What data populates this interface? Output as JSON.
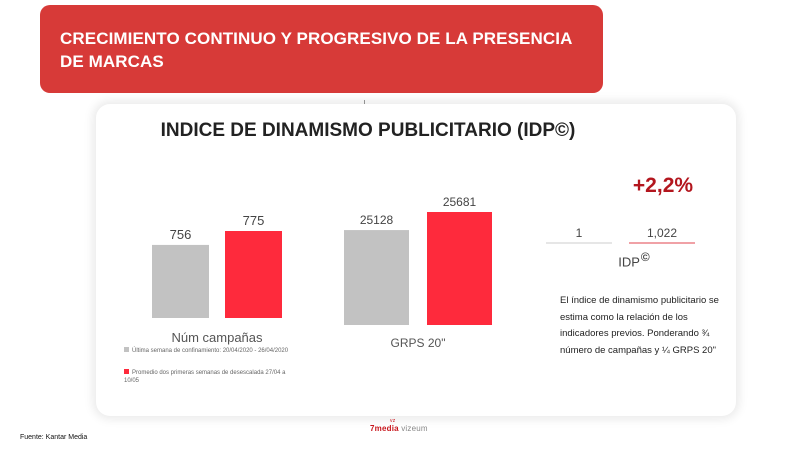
{
  "header": {
    "title": "CRECIMIENTO CONTINUO Y PROGRESIVO DE LA PRESENCIA DE MARCAS"
  },
  "card": {
    "title": "INDICE DE DINAMISMO PUBLICITARIO (IDP©)"
  },
  "chart_data": [
    {
      "type": "bar",
      "categories": [
        "Núm campañas"
      ],
      "series": [
        {
          "name": "Última semana de confinamiento: 20/04/2020 - 26/04/2020",
          "values": [
            756
          ],
          "color": "#c2c2c2"
        },
        {
          "name": "Promedio dos primeras semanas de desescalada 27/04 a 10/05",
          "values": [
            775
          ],
          "color": "#fe2a3c"
        }
      ],
      "value_labels": [
        "756",
        "775"
      ],
      "xlabel": "Núm campañas"
    },
    {
      "type": "bar",
      "categories": [
        "GRPS 20\""
      ],
      "series": [
        {
          "name": "Última semana de confinamiento: 20/04/2020 - 26/04/2020",
          "values": [
            25128
          ],
          "color": "#c2c2c2"
        },
        {
          "name": "Promedio dos primeras semanas de desescalada 27/04 a 10/05",
          "values": [
            25681
          ],
          "color": "#fe2a3c"
        }
      ],
      "value_labels": [
        "25128",
        "25681"
      ],
      "xlabel": "GRPS 20\""
    }
  ],
  "idp": {
    "delta": "+2,2%",
    "values": [
      "1",
      "1,022"
    ],
    "label": "IDP",
    "label_sup": "©",
    "underline_colors": [
      "#cccccc",
      "#e0434c"
    ]
  },
  "note": "El índice de dinamismo publicitario se estima como la relación de los indicadores previos. Ponderando ¾ número de campañas y ¼ GRPS 20\"",
  "legend": [
    {
      "text": "Última semana de confinamiento: 20/04/2020 - 26/04/2020",
      "color": "#c2c2c2"
    },
    {
      "text": "Promedio dos primeras semanas de desescalada 27/04 a 10/05",
      "color": "#fe2a3c"
    }
  ],
  "footer": {
    "source": "Fuente: Kantar Media",
    "logo_media": "media",
    "logo_vizeum": "vizeum",
    "logo_mark": "7",
    "logo_sup": "vz"
  },
  "colors": {
    "header_bg": "#d73a38",
    "accent": "#b3161e"
  }
}
